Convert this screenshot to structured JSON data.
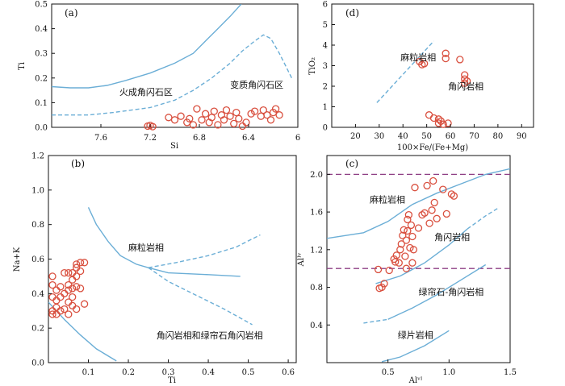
{
  "colors": {
    "line": "#6baed6",
    "marker": "#d9503f",
    "dashed_ref": "#8e3e84",
    "axis": "#111111"
  },
  "chart_data": [
    {
      "id": "a",
      "type": "scatter",
      "panel_label": "(a)",
      "xlabel": "Si",
      "ylabel": "Ti",
      "xlim": [
        8.0,
        6.0
      ],
      "ylim": [
        0,
        0.5
      ],
      "xticks": [
        "7.6",
        "7.2",
        "6.8",
        "6.4",
        "6"
      ],
      "xtick_values": [
        7.6,
        7.2,
        6.8,
        6.4,
        6.0
      ],
      "yticks": [
        "0.0",
        "0.1",
        "0.2",
        "0.3",
        "0.4",
        "0.5"
      ],
      "ytick_values": [
        0,
        0.1,
        0.2,
        0.3,
        0.4,
        0.5
      ],
      "region_labels": [
        {
          "text": "火成角闪石区",
          "x": 7.45,
          "y": 0.13
        },
        {
          "text": "变质角闪石区",
          "x": 6.55,
          "y": 0.16
        }
      ],
      "curves": [
        {
          "name": "火成/变质边界",
          "style": "solid",
          "points": [
            [
              8.0,
              0.165
            ],
            [
              7.85,
              0.16
            ],
            [
              7.7,
              0.16
            ],
            [
              7.55,
              0.17
            ],
            [
              7.4,
              0.19
            ],
            [
              7.2,
              0.22
            ],
            [
              7.0,
              0.26
            ],
            [
              6.85,
              0.3
            ],
            [
              6.75,
              0.35
            ],
            [
              6.65,
              0.4
            ],
            [
              6.55,
              0.45
            ],
            [
              6.46,
              0.5
            ]
          ]
        },
        {
          "name": "变质角闪石上限",
          "style": "dashed",
          "points": [
            [
              8.0,
              0.05
            ],
            [
              7.7,
              0.05
            ],
            [
              7.5,
              0.06
            ],
            [
              7.2,
              0.08
            ],
            [
              7.0,
              0.11
            ],
            [
              6.85,
              0.15
            ],
            [
              6.7,
              0.2
            ],
            [
              6.55,
              0.26
            ],
            [
              6.45,
              0.31
            ],
            [
              6.35,
              0.35
            ],
            [
              6.28,
              0.375
            ],
            [
              6.22,
              0.36
            ],
            [
              6.15,
              0.3
            ],
            [
              6.1,
              0.25
            ],
            [
              6.05,
              0.2
            ]
          ]
        }
      ],
      "points": [
        [
          7.22,
          0.005
        ],
        [
          7.2,
          0.008
        ],
        [
          7.18,
          0.003
        ],
        [
          7.05,
          0.04
        ],
        [
          7.0,
          0.03
        ],
        [
          6.95,
          0.045
        ],
        [
          6.9,
          0.02
        ],
        [
          6.85,
          0.01
        ],
        [
          6.82,
          0.075
        ],
        [
          6.78,
          0.03
        ],
        [
          6.75,
          0.055
        ],
        [
          6.72,
          0.02
        ],
        [
          6.7,
          0.04
        ],
        [
          6.68,
          0.065
        ],
        [
          6.65,
          0.01
        ],
        [
          6.62,
          0.05
        ],
        [
          6.6,
          0.03
        ],
        [
          6.58,
          0.07
        ],
        [
          6.55,
          0.045
        ],
        [
          6.52,
          0.015
        ],
        [
          6.5,
          0.06
        ],
        [
          6.48,
          0.035
        ],
        [
          6.45,
          0.005
        ],
        [
          6.42,
          0.02
        ],
        [
          6.38,
          0.055
        ],
        [
          6.35,
          0.065
        ],
        [
          6.3,
          0.045
        ],
        [
          6.28,
          0.07
        ],
        [
          6.25,
          0.05
        ],
        [
          6.22,
          0.03
        ],
        [
          6.2,
          0.06
        ],
        [
          6.18,
          0.075
        ],
        [
          6.15,
          0.05
        ],
        [
          6.88,
          0.035
        ]
      ]
    },
    {
      "id": "d",
      "type": "scatter",
      "panel_label": "(d)",
      "xlabel": "100×Fe/(Fe+Mg)",
      "ylabel": "TiO₂",
      "xlim": [
        10,
        95
      ],
      "ylim": [
        0,
        6
      ],
      "xticks": [
        "20",
        "30",
        "40",
        "50",
        "60",
        "70",
        "80",
        "90"
      ],
      "xtick_values": [
        20,
        30,
        40,
        50,
        60,
        70,
        80,
        90
      ],
      "yticks": [
        "0",
        "1",
        "2",
        "3",
        "4",
        "5",
        "6"
      ],
      "ytick_values": [
        0,
        1,
        2,
        3,
        4,
        5,
        6
      ],
      "region_labels": [
        {
          "text": "麻粒岩相",
          "x": 39,
          "y": 3.25
        },
        {
          "text": "角闪岩相",
          "x": 59,
          "y": 1.85
        }
      ],
      "curves": [
        {
          "name": "麻粒岩相/角闪岩相界线",
          "style": "dashed",
          "points": [
            [
              29,
              1.2
            ],
            [
              53,
              4.2
            ]
          ]
        }
      ],
      "points": [
        [
          47,
          3.2
        ],
        [
          48,
          3.05
        ],
        [
          49,
          3.1
        ],
        [
          58,
          3.6
        ],
        [
          58,
          3.35
        ],
        [
          64,
          3.3
        ],
        [
          51,
          0.6
        ],
        [
          53,
          0.45
        ],
        [
          55,
          0.4
        ],
        [
          55,
          0.2
        ],
        [
          56,
          0.3
        ],
        [
          57,
          0.15
        ],
        [
          59,
          0.2
        ],
        [
          66,
          2.55
        ],
        [
          66,
          2.35
        ],
        [
          66,
          2.15
        ],
        [
          67,
          2.25
        ]
      ]
    },
    {
      "id": "b",
      "type": "scatter",
      "panel_label": "(b)",
      "xlabel": "Ti",
      "ylabel": "Na+K",
      "xlim": [
        0,
        0.62
      ],
      "ylim": [
        0,
        1.2
      ],
      "xticks": [
        "0.1",
        "0.2",
        "0.3",
        "0.4",
        "0.5",
        "0.6"
      ],
      "xtick_values": [
        0.1,
        0.2,
        0.3,
        0.4,
        0.5,
        0.6
      ],
      "yticks": [
        "0.0",
        "0.2",
        "0.4",
        "0.6",
        "0.8",
        "1.0",
        "1.2"
      ],
      "ytick_values": [
        0,
        0.2,
        0.4,
        0.6,
        0.8,
        1.0,
        1.2
      ],
      "region_labels": [
        {
          "text": "麻粒岩相",
          "x": 0.2,
          "y": 0.65
        },
        {
          "text": "角闪岩相和绿帘石角闪岩相",
          "x": 0.27,
          "y": 0.14
        }
      ],
      "curves": [
        {
          "name": "麻粒岩相下界",
          "style": "solid",
          "points": [
            [
              0.1,
              0.9
            ],
            [
              0.12,
              0.8
            ],
            [
              0.15,
              0.7
            ],
            [
              0.18,
              0.62
            ],
            [
              0.22,
              0.57
            ],
            [
              0.25,
              0.55
            ]
          ]
        },
        {
          "name": "主界线",
          "style": "solid",
          "points": [
            [
              0.25,
              0.55
            ],
            [
              0.3,
              0.52
            ],
            [
              0.4,
              0.51
            ],
            [
              0.48,
              0.5
            ]
          ]
        },
        {
          "name": "下部实线",
          "style": "solid",
          "points": [
            [
              0.0,
              0.35
            ],
            [
              0.04,
              0.25
            ],
            [
              0.08,
              0.16
            ],
            [
              0.12,
              0.08
            ],
            [
              0.17,
              0.01
            ]
          ]
        },
        {
          "name": "上分支",
          "style": "dashed",
          "points": [
            [
              0.25,
              0.55
            ],
            [
              0.32,
              0.58
            ],
            [
              0.4,
              0.62
            ],
            [
              0.47,
              0.67
            ],
            [
              0.53,
              0.74
            ]
          ]
        },
        {
          "name": "下分支",
          "style": "dashed",
          "points": [
            [
              0.25,
              0.55
            ],
            [
              0.3,
              0.47
            ],
            [
              0.37,
              0.39
            ],
            [
              0.44,
              0.31
            ],
            [
              0.51,
              0.22
            ]
          ]
        }
      ],
      "points": [
        [
          0.01,
          0.5
        ],
        [
          0.01,
          0.45
        ],
        [
          0.01,
          0.38
        ],
        [
          0.01,
          0.3
        ],
        [
          0.01,
          0.28
        ],
        [
          0.02,
          0.42
        ],
        [
          0.02,
          0.32
        ],
        [
          0.02,
          0.28
        ],
        [
          0.03,
          0.44
        ],
        [
          0.03,
          0.38
        ],
        [
          0.03,
          0.3
        ],
        [
          0.04,
          0.4
        ],
        [
          0.04,
          0.31
        ],
        [
          0.05,
          0.52
        ],
        [
          0.05,
          0.45
        ],
        [
          0.05,
          0.42
        ],
        [
          0.05,
          0.35
        ],
        [
          0.06,
          0.48
        ],
        [
          0.06,
          0.43
        ],
        [
          0.06,
          0.38
        ],
        [
          0.06,
          0.33
        ],
        [
          0.07,
          0.57
        ],
        [
          0.07,
          0.55
        ],
        [
          0.07,
          0.5
        ],
        [
          0.07,
          0.44
        ],
        [
          0.08,
          0.58
        ],
        [
          0.08,
          0.53
        ],
        [
          0.08,
          0.43
        ],
        [
          0.09,
          0.58
        ],
        [
          0.09,
          0.34
        ],
        [
          0.06,
          0.52
        ],
        [
          0.05,
          0.28
        ],
        [
          0.04,
          0.52
        ],
        [
          0.02,
          0.36
        ],
        [
          0.07,
          0.31
        ]
      ]
    },
    {
      "id": "c",
      "type": "scatter",
      "panel_label": "(c)",
      "xlabel": "Alᵛᴵ",
      "ylabel": "Alᴵᵛ",
      "xlim": [
        0,
        1.5
      ],
      "ylim": [
        0,
        2.2
      ],
      "xticks": [
        "0.5",
        "1.0",
        "1.5"
      ],
      "xtick_values": [
        0.5,
        1.0,
        1.5
      ],
      "yticks": [
        "0.4",
        "0.8",
        "1.2",
        "1.6",
        "2.0"
      ],
      "ytick_values": [
        0.4,
        0.8,
        1.2,
        1.6,
        2.0
      ],
      "hlines": [
        2.0,
        1.0
      ],
      "region_labels": [
        {
          "text": "麻粒岩相",
          "x": 0.35,
          "y": 1.7
        },
        {
          "text": "角闪岩相",
          "x": 0.88,
          "y": 1.3
        },
        {
          "text": "绿帘石-角闪岩相",
          "x": 0.75,
          "y": 0.72
        },
        {
          "text": "绿片岩相",
          "x": 0.58,
          "y": 0.26
        }
      ],
      "curves": [
        {
          "name": "麻粒岩相界线",
          "style": "solid",
          "points": [
            [
              0.0,
              1.32
            ],
            [
              0.3,
              1.38
            ],
            [
              0.5,
              1.5
            ],
            [
              0.7,
              1.68
            ],
            [
              0.9,
              1.8
            ],
            [
              1.1,
              1.9
            ],
            [
              1.3,
              2.0
            ],
            [
              1.5,
              2.06
            ]
          ]
        },
        {
          "name": "角闪岩相界线",
          "style": "solid",
          "points": [
            [
              0.4,
              0.84
            ],
            [
              0.6,
              0.92
            ],
            [
              0.8,
              1.06
            ],
            [
              1.0,
              1.25
            ],
            [
              1.15,
              1.42
            ]
          ]
        },
        {
          "name": "角闪岩相界线延伸",
          "style": "dashed",
          "points": [
            [
              1.15,
              1.42
            ],
            [
              1.3,
              1.56
            ],
            [
              1.4,
              1.64
            ]
          ]
        },
        {
          "name": "绿帘石角闪岩相界线",
          "style": "dashed",
          "points": [
            [
              0.3,
              0.42
            ],
            [
              0.5,
              0.46
            ]
          ]
        },
        {
          "name": "绿帘石角闪岩相界线实线",
          "style": "solid",
          "points": [
            [
              0.5,
              0.46
            ],
            [
              0.7,
              0.58
            ],
            [
              0.9,
              0.72
            ],
            [
              1.1,
              0.88
            ],
            [
              1.3,
              1.04
            ]
          ]
        },
        {
          "name": "绿片岩相界线",
          "style": "solid",
          "points": [
            [
              0.45,
              0.01
            ],
            [
              0.6,
              0.06
            ],
            [
              0.8,
              0.18
            ],
            [
              1.0,
              0.34
            ]
          ]
        }
      ],
      "points": [
        [
          0.42,
          0.99
        ],
        [
          0.43,
          0.79
        ],
        [
          0.45,
          0.8
        ],
        [
          0.47,
          0.84
        ],
        [
          0.51,
          0.98
        ],
        [
          0.55,
          1.1
        ],
        [
          0.56,
          1.07
        ],
        [
          0.57,
          1.14
        ],
        [
          0.6,
          1.2
        ],
        [
          0.61,
          1.26
        ],
        [
          0.62,
          1.35
        ],
        [
          0.63,
          1.41
        ],
        [
          0.64,
          1.13
        ],
        [
          0.65,
          1.3
        ],
        [
          0.66,
          1.4
        ],
        [
          0.66,
          1.52
        ],
        [
          0.67,
          1.57
        ],
        [
          0.68,
          1.22
        ],
        [
          0.69,
          1.46
        ],
        [
          0.7,
          1.34
        ],
        [
          0.71,
          1.2
        ],
        [
          0.72,
          1.86
        ],
        [
          0.75,
          1.43
        ],
        [
          0.78,
          1.57
        ],
        [
          0.8,
          1.59
        ],
        [
          0.82,
          1.88
        ],
        [
          0.84,
          1.48
        ],
        [
          0.86,
          1.62
        ],
        [
          0.87,
          1.93
        ],
        [
          0.88,
          1.7
        ],
        [
          0.9,
          1.53
        ],
        [
          0.95,
          1.84
        ],
        [
          0.98,
          1.58
        ],
        [
          1.02,
          1.79
        ],
        [
          1.04,
          1.77
        ],
        [
          0.7,
          1.06
        ],
        [
          0.65,
          1.0
        ],
        [
          0.59,
          1.06
        ]
      ]
    }
  ]
}
